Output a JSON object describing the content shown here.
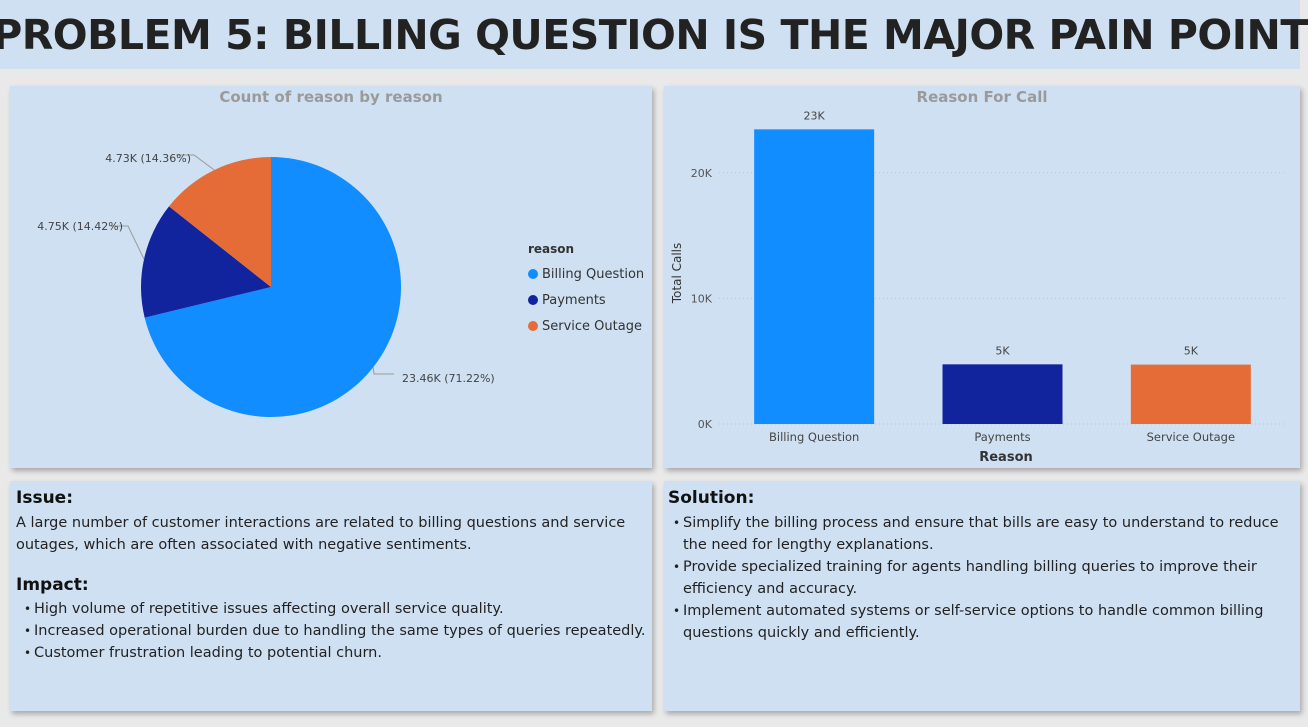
{
  "page": {
    "title": "PROBLEM 5: BILLING QUESTION IS THE MAJOR PAIN POINT"
  },
  "pie_chart": {
    "title": "Count of reason by reason",
    "legend_title": "reason",
    "labels": [
      "23.46K (71.22%)",
      "4.75K (14.42%)",
      "4.73K (14.36%)"
    ]
  },
  "bar_chart": {
    "title": "Reason For Call",
    "xlabel": "Reason",
    "ylabel": "Total Calls",
    "y_ticks": [
      "0K",
      "10K",
      "20K"
    ],
    "data_labels": [
      "23K",
      "5K",
      "5K"
    ]
  },
  "chart_data": [
    {
      "type": "pie",
      "title": "Count of reason by reason",
      "legend_title": "reason",
      "legend_position": "right",
      "categories": [
        "Billing Question",
        "Payments",
        "Service Outage"
      ],
      "values": [
        23460,
        4750,
        4730
      ],
      "percentages": [
        71.22,
        14.42,
        14.36
      ],
      "colors": [
        "#118dff",
        "#12239e",
        "#e66c37"
      ]
    },
    {
      "type": "bar",
      "title": "Reason For Call",
      "xlabel": "Reason",
      "ylabel": "Total Calls",
      "categories": [
        "Billing Question",
        "Payments",
        "Service Outage"
      ],
      "values": [
        23460,
        4750,
        4730
      ],
      "ylim": [
        0,
        25000
      ],
      "y_ticks": [
        0,
        10000,
        20000
      ],
      "grid": true,
      "colors": [
        "#118dff",
        "#12239e",
        "#e66c37"
      ]
    }
  ],
  "issue": {
    "heading": "Issue:",
    "text": "A large number of customer interactions are related to billing questions and service outages, which are often associated with negative sentiments."
  },
  "impact": {
    "heading": "Impact:",
    "items": [
      "High volume of repetitive issues affecting overall service quality.",
      "Increased operational burden due to handling the same types of queries repeatedly.",
      "Customer frustration leading to potential churn."
    ]
  },
  "solution": {
    "heading": "Solution:",
    "items": [
      "Simplify the billing process and ensure that bills are easy to understand to reduce the need for lengthy explanations.",
      "Provide specialized training for agents handling billing queries to improve their efficiency and accuracy.",
      "Implement automated systems or self-service options to handle common billing questions quickly and efficiently."
    ]
  }
}
